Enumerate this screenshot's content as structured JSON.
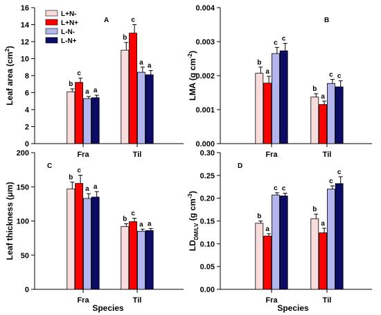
{
  "colors": {
    "L+N-": "#f9dcdc",
    "L+N+": "#ff0000",
    "L-N-": "#b3b5ef",
    "L-N+": "#0c0c66"
  },
  "legend": [
    "L+N-",
    "L+N+",
    "L-N-",
    "L-N+"
  ],
  "chart_data": [
    {
      "type": "bar",
      "panel": "A",
      "ylabel_main": "Leaf area (cm",
      "ylabel_sup": "2",
      "ylabel_end": ")",
      "categories": [
        "Fra",
        "Til"
      ],
      "ylim": [
        0,
        16
      ],
      "yticks": [
        "0",
        "2",
        "4",
        "6",
        "8",
        "10",
        "12",
        "14",
        "16"
      ],
      "series": [
        {
          "name": "L+N-",
          "values": [
            6.1,
            11.0
          ],
          "errors": [
            0.35,
            0.9
          ],
          "letters": [
            "b",
            "b"
          ]
        },
        {
          "name": "L+N+",
          "values": [
            7.2,
            13.0
          ],
          "errors": [
            0.5,
            1.0
          ],
          "letters": [
            "c",
            "c"
          ]
        },
        {
          "name": "L-N-",
          "values": [
            5.3,
            8.4
          ],
          "errors": [
            0.25,
            0.6
          ],
          "letters": [
            "a",
            "a"
          ]
        },
        {
          "name": "L-N+",
          "values": [
            5.4,
            8.1
          ],
          "errors": [
            0.3,
            0.5
          ],
          "letters": [
            "a",
            "a"
          ]
        }
      ]
    },
    {
      "type": "bar",
      "panel": "B",
      "ylabel_main": "LMA (g cm",
      "ylabel_sup": "-2",
      "ylabel_end": ")",
      "categories": [
        "Fra",
        "Til"
      ],
      "ylim": [
        0,
        0.004
      ],
      "yticks": [
        "0.000",
        "0.001",
        "0.002",
        "0.003",
        "0.004"
      ],
      "series": [
        {
          "name": "L+N-",
          "values": [
            0.00207,
            0.00137
          ],
          "errors": [
            0.00018,
            0.0001
          ],
          "letters": [
            "b",
            "b"
          ]
        },
        {
          "name": "L+N+",
          "values": [
            0.00178,
            0.00115
          ],
          "errors": [
            0.0002,
            0.0001
          ],
          "letters": [
            "a",
            "a"
          ]
        },
        {
          "name": "L-N-",
          "values": [
            0.00265,
            0.00177
          ],
          "errors": [
            0.00018,
            0.00012
          ],
          "letters": [
            "c",
            "c"
          ]
        },
        {
          "name": "L-N+",
          "values": [
            0.00273,
            0.00167
          ],
          "errors": [
            0.00022,
            0.00018
          ],
          "letters": [
            "c",
            "c"
          ]
        }
      ]
    },
    {
      "type": "bar",
      "panel": "C",
      "ylabel_main": "Leaf thickness (",
      "ylabel_mu": "μ",
      "ylabel_end": "m)",
      "categories": [
        "Fra",
        "Til"
      ],
      "ylim": [
        0,
        200
      ],
      "yticks": [
        "0",
        "50",
        "100",
        "150",
        "200"
      ],
      "series": [
        {
          "name": "L+N-",
          "values": [
            147,
            92
          ],
          "errors": [
            10,
            4
          ],
          "letters": [
            "b",
            "b"
          ]
        },
        {
          "name": "L+N+",
          "values": [
            155,
            99
          ],
          "errors": [
            12,
            5
          ],
          "letters": [
            "c",
            "c"
          ]
        },
        {
          "name": "L-N-",
          "values": [
            133,
            85
          ],
          "errors": [
            7,
            3
          ],
          "letters": [
            "a",
            "a"
          ]
        },
        {
          "name": "L-N+",
          "values": [
            135,
            86
          ],
          "errors": [
            8,
            3
          ],
          "letters": [
            "a",
            "a"
          ]
        }
      ]
    },
    {
      "type": "bar",
      "panel": "D",
      "ylabel_main": "LD",
      "ylabel_sub": "DM/LV",
      "ylabel_mid": " (g cm",
      "ylabel_sup": "-3",
      "ylabel_end": ")",
      "categories": [
        "Fra",
        "Til"
      ],
      "ylim": [
        0,
        0.3
      ],
      "yticks": [
        "0.00",
        "0.05",
        "0.10",
        "0.15",
        "0.20",
        "0.25",
        "0.30"
      ],
      "series": [
        {
          "name": "L+N-",
          "values": [
            0.145,
            0.155
          ],
          "errors": [
            0.005,
            0.01
          ],
          "letters": [
            "b",
            "b"
          ]
        },
        {
          "name": "L+N+",
          "values": [
            0.117,
            0.124
          ],
          "errors": [
            0.005,
            0.01
          ],
          "letters": [
            "a",
            "a"
          ]
        },
        {
          "name": "L-N-",
          "values": [
            0.207,
            0.22
          ],
          "errors": [
            0.005,
            0.007
          ],
          "letters": [
            "c",
            "c"
          ]
        },
        {
          "name": "L-N+",
          "values": [
            0.205,
            0.232
          ],
          "errors": [
            0.006,
            0.015
          ],
          "letters": [
            "c",
            "c"
          ]
        }
      ]
    }
  ],
  "xlabel": "Species"
}
